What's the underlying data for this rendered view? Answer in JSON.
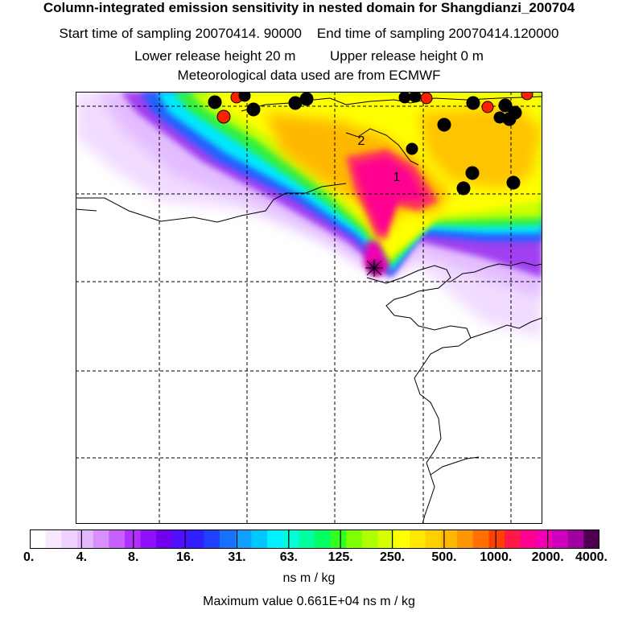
{
  "header": {
    "title": "Column-integrated emission sensitivity in nested domain for Shangdianzi_200704",
    "start_label": "Start time of sampling 20070414. 90000",
    "end_label": "End time of sampling 20070414.120000",
    "lower_label": "Lower release height   20 m",
    "upper_label": "Upper release height    0 m",
    "met_label": "Meteorological data used are from ECMWF"
  },
  "map": {
    "contour_labels": [
      "2",
      "1"
    ]
  },
  "colorbar": {
    "tick_labels": [
      "0.",
      "4.",
      "8.",
      "16.",
      "31.",
      "63.",
      "125.",
      "250.",
      "500.",
      "1000.",
      "2000.",
      "4000."
    ],
    "colors": [
      "#ffffff",
      "#f8e8ff",
      "#f0d0ff",
      "#e4b8ff",
      "#d890ff",
      "#c860ff",
      "#b030ff",
      "#9010ff",
      "#7000f0",
      "#5010ff",
      "#3020ff",
      "#2040ff",
      "#1870ff",
      "#10a0ff",
      "#00c8ff",
      "#00f0ff",
      "#00ffd8",
      "#00ffa0",
      "#00ff60",
      "#30ff20",
      "#80ff00",
      "#b0ff00",
      "#d8ff00",
      "#ffff00",
      "#ffe800",
      "#ffd000",
      "#ffb800",
      "#ff9800",
      "#ff7000",
      "#ff4000",
      "#ff1848",
      "#ff0090",
      "#f000b0",
      "#d000c0",
      "#a000a0",
      "#500050"
    ],
    "units": "ns m / kg",
    "max_value": "Maximum value  0.661E+04 ns m / kg"
  }
}
